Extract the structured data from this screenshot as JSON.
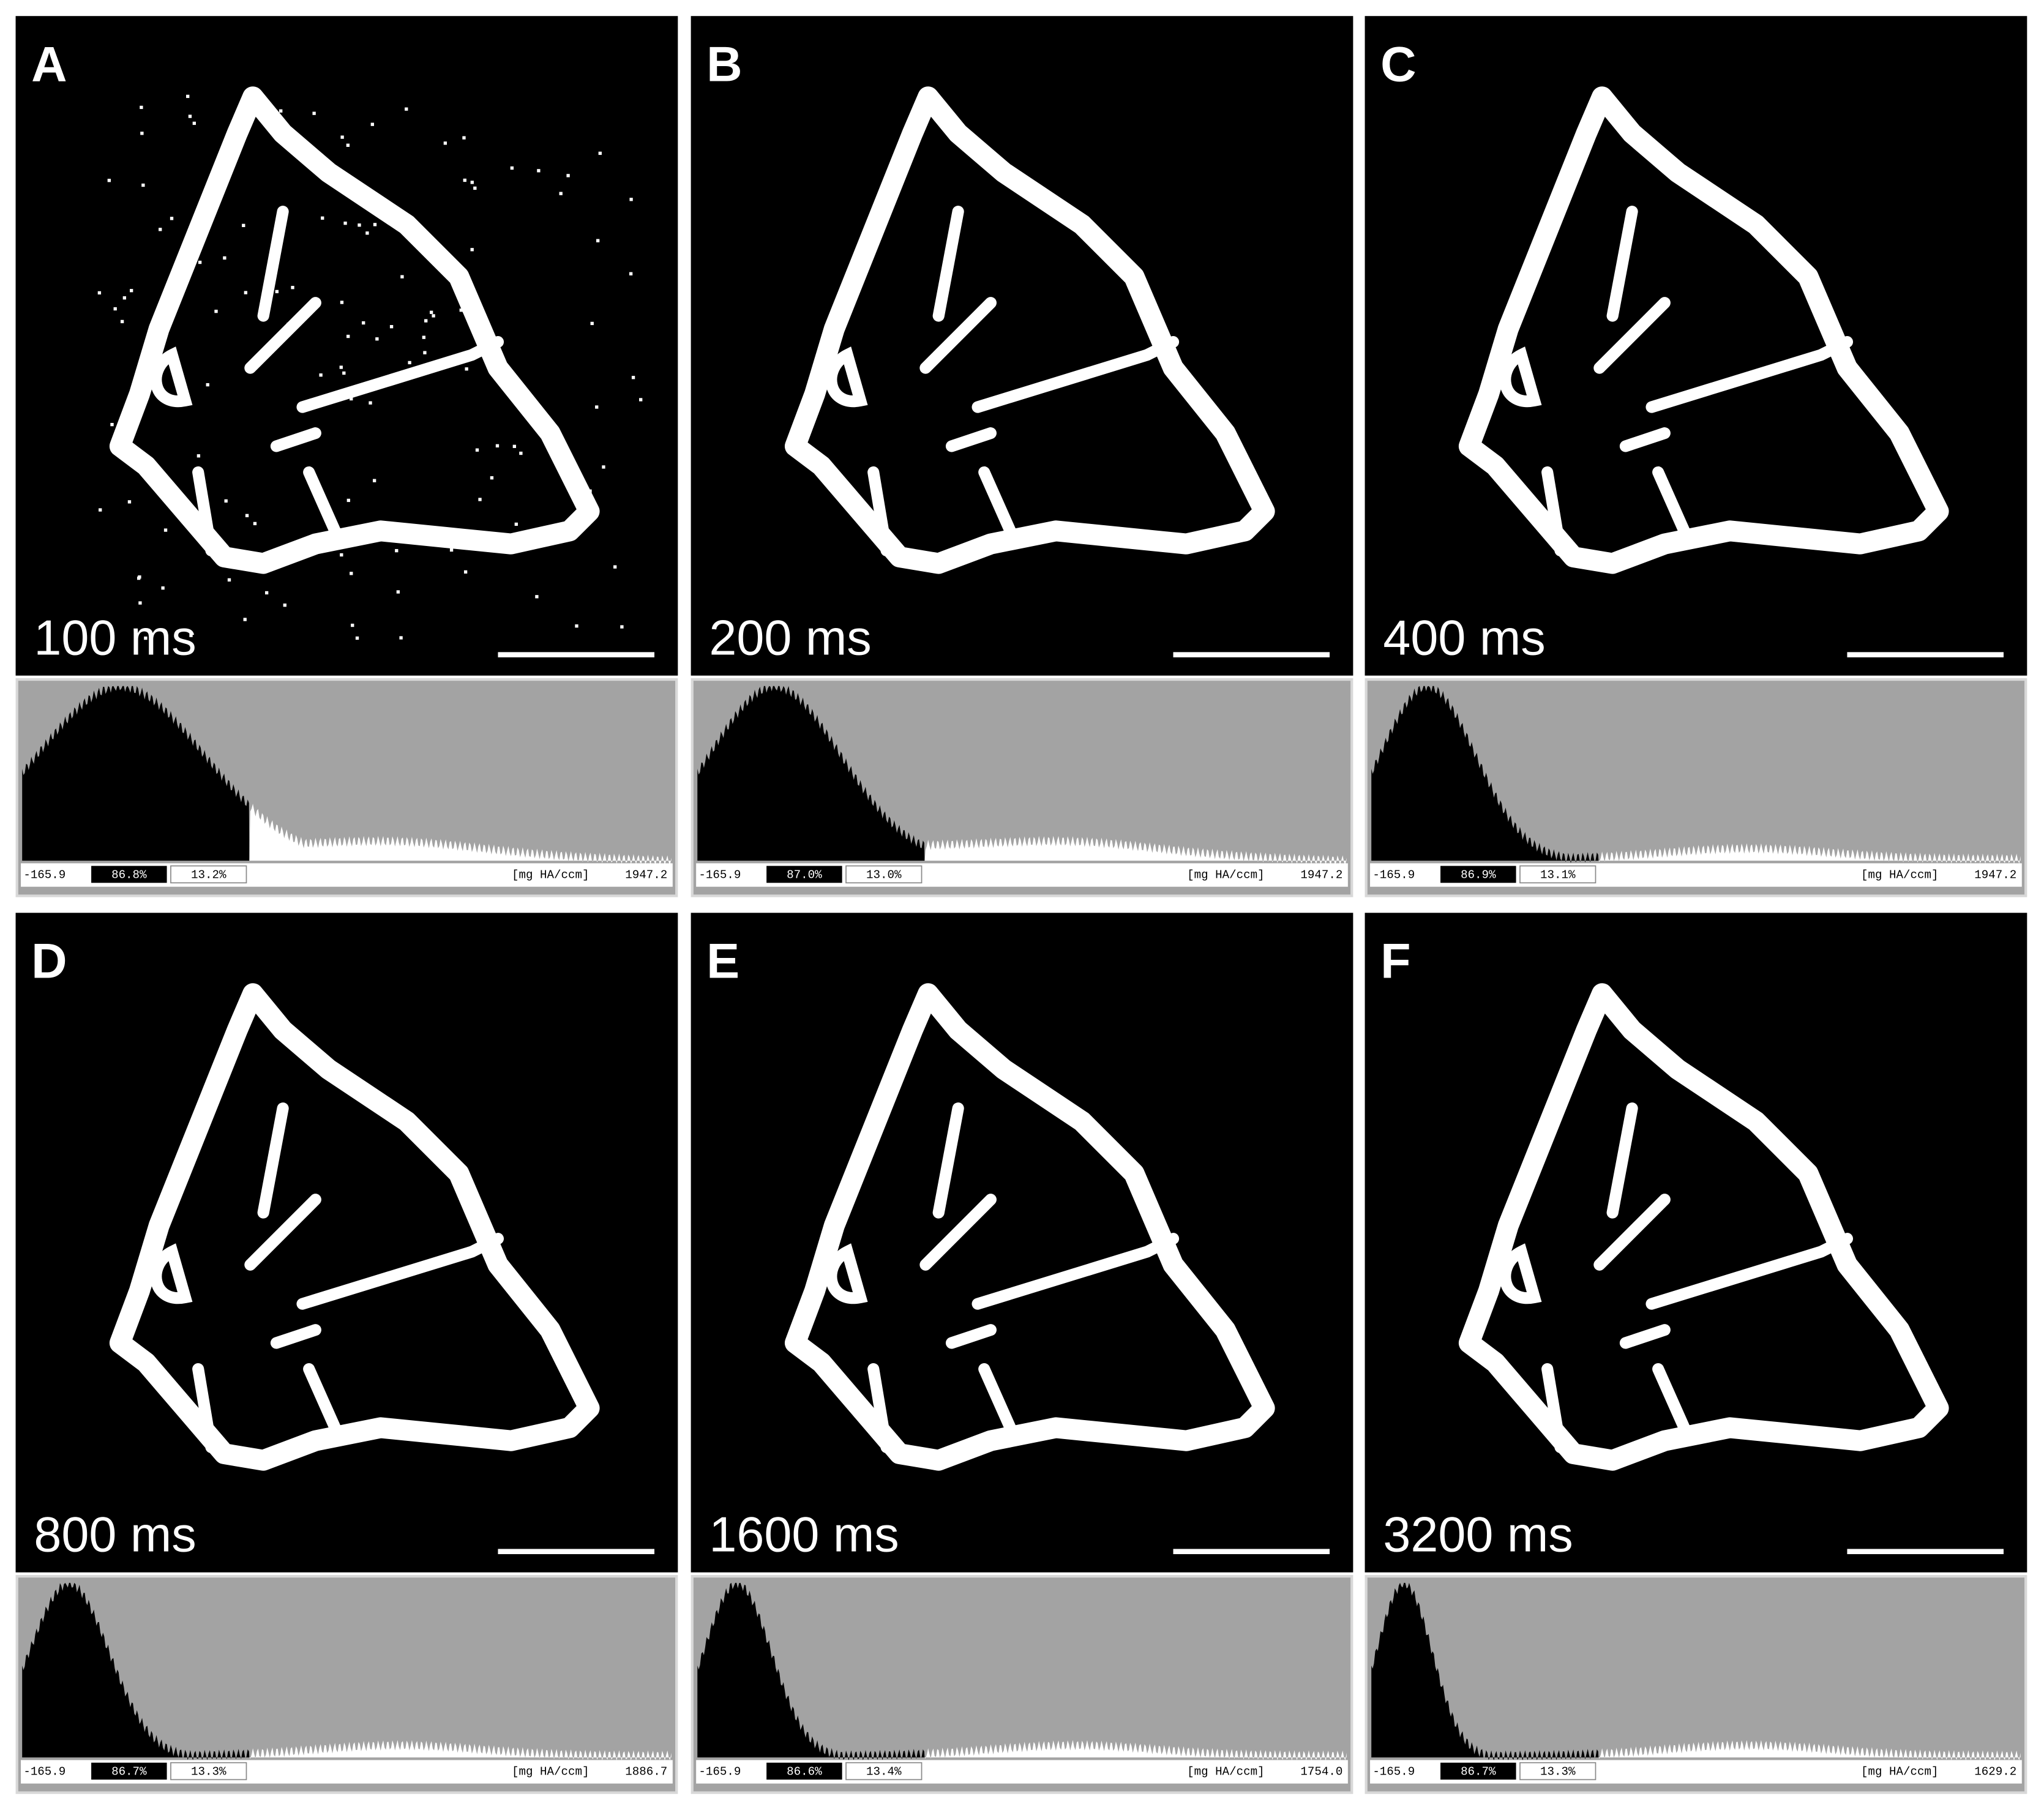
{
  "panels": [
    {
      "letter": "A",
      "exposure": "100 ms",
      "hist": {
        "min": "-165.9",
        "below": "86.8%",
        "above": "13.2%",
        "unit": "[mg HA/ccm]",
        "max": "1947.2"
      }
    },
    {
      "letter": "B",
      "exposure": "200 ms",
      "hist": {
        "min": "-165.9",
        "below": "87.0%",
        "above": "13.0%",
        "unit": "[mg HA/ccm]",
        "max": "1947.2"
      }
    },
    {
      "letter": "C",
      "exposure": "400 ms",
      "hist": {
        "min": "-165.9",
        "below": "86.9%",
        "above": "13.1%",
        "unit": "[mg HA/ccm]",
        "max": "1947.2"
      }
    },
    {
      "letter": "D",
      "exposure": "800 ms",
      "hist": {
        "min": "-165.9",
        "below": "86.7%",
        "above": "13.3%",
        "unit": "[mg HA/ccm]",
        "max": "1886.7"
      }
    },
    {
      "letter": "E",
      "exposure": "1600 ms",
      "hist": {
        "min": "-165.9",
        "below": "86.6%",
        "above": "13.4%",
        "unit": "[mg HA/ccm]",
        "max": "1754.0"
      }
    },
    {
      "letter": "F",
      "exposure": "3200 ms",
      "hist": {
        "min": "-165.9",
        "below": "86.7%",
        "above": "13.3%",
        "unit": "[mg HA/ccm]",
        "max": "1629.2"
      }
    }
  ]
}
